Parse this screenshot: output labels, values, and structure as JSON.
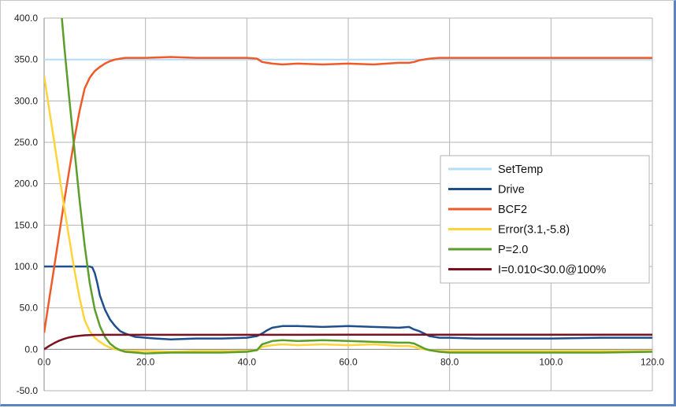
{
  "chart_data": {
    "type": "line",
    "title": "",
    "xlabel": "",
    "ylabel": "",
    "xlim": [
      0,
      120
    ],
    "ylim": [
      -50,
      400
    ],
    "x_ticks": [
      "0.0",
      "20.0",
      "40.0",
      "60.0",
      "80.0",
      "100.0",
      "120.0"
    ],
    "y_ticks": [
      "-50.0",
      "0.0",
      "50.0",
      "100.0",
      "150.0",
      "200.0",
      "250.0",
      "300.0",
      "350.0",
      "400.0"
    ],
    "grid": true,
    "legend_position": "right",
    "series": [
      {
        "name": "SetTemp",
        "color": "#b4dcf7",
        "x": [
          0,
          120
        ],
        "y": [
          350,
          350
        ]
      },
      {
        "name": "Drive",
        "color": "#1f4e8c",
        "x": [
          0,
          9,
          9.5,
          10,
          10.5,
          11,
          12,
          13,
          14,
          15,
          16,
          17,
          18,
          20,
          22,
          25,
          30,
          35,
          40,
          41,
          42,
          43,
          44,
          45,
          47,
          50,
          55,
          60,
          65,
          70,
          72,
          73,
          74,
          75,
          76,
          78,
          80,
          85,
          90,
          100,
          110,
          120
        ],
        "y": [
          100,
          100,
          99,
          92,
          80,
          65,
          48,
          36,
          28,
          22,
          19,
          17,
          15,
          14,
          13,
          12,
          13,
          13,
          14,
          15,
          16,
          19,
          23,
          26,
          28,
          28,
          27,
          28,
          27,
          26,
          27,
          24,
          22,
          19,
          16,
          14,
          14,
          13,
          13,
          13,
          14,
          14
        ]
      },
      {
        "name": "BCF2",
        "color": "#f05a28",
        "x": [
          0,
          1,
          2,
          3,
          4,
          5,
          6,
          7,
          8,
          9,
          10,
          11,
          12,
          13,
          14,
          15,
          16,
          18,
          20,
          25,
          30,
          35,
          40,
          42,
          43,
          44,
          45,
          47,
          50,
          55,
          60,
          65,
          70,
          72,
          73,
          74,
          75,
          76,
          78,
          80,
          90,
          100,
          110,
          120
        ],
        "y": [
          20,
          60,
          100,
          140,
          180,
          218,
          255,
          288,
          315,
          328,
          336,
          341,
          345,
          348,
          350,
          351,
          352,
          352,
          352,
          353,
          352,
          352,
          352,
          351,
          347,
          346,
          345,
          344,
          345,
          344,
          345,
          344,
          346,
          346,
          347,
          349,
          350,
          351,
          352,
          352,
          352,
          352,
          352,
          352
        ]
      },
      {
        "name": "Error(3.1,-5.8)",
        "color": "#ffd43b",
        "x": [
          0,
          1,
          2,
          3,
          4,
          5,
          6,
          7,
          8,
          9,
          10,
          11,
          12,
          13,
          14,
          15,
          16,
          18,
          20,
          25,
          30,
          35,
          40,
          42,
          43,
          44,
          45,
          47,
          50,
          55,
          60,
          65,
          70,
          72,
          73,
          74,
          75,
          76,
          78,
          80,
          90,
          100,
          110,
          120
        ],
        "y": [
          330,
          290,
          250,
          210,
          170,
          132,
          95,
          62,
          35,
          22,
          14,
          9,
          5,
          2,
          0,
          -1,
          -2,
          -2,
          -2,
          -3,
          -2,
          -2,
          -2,
          -1,
          3,
          4,
          5,
          6,
          5,
          6,
          5,
          6,
          4,
          4,
          3,
          1,
          0,
          -1,
          -2,
          -2,
          -2,
          -2,
          -2,
          -2
        ]
      },
      {
        "name": "P=2.0",
        "color": "#5b9e2a",
        "x": [
          3.5,
          4,
          5,
          6,
          7,
          8,
          9,
          10,
          11,
          12,
          13,
          14,
          15,
          16,
          18,
          20,
          25,
          30,
          35,
          40,
          42,
          43,
          44,
          45,
          47,
          50,
          55,
          60,
          65,
          70,
          72,
          73,
          74,
          75,
          76,
          78,
          80,
          90,
          100,
          110,
          120
        ],
        "y": [
          400,
          365,
          300,
          240,
          180,
          125,
          80,
          48,
          28,
          15,
          7,
          2,
          -1,
          -3,
          -4,
          -5,
          -4,
          -4,
          -4,
          -3,
          -1,
          6,
          8,
          10,
          11,
          10,
          11,
          10,
          9,
          8,
          8,
          7,
          4,
          1,
          -1,
          -3,
          -4,
          -4,
          -4,
          -4,
          -3
        ]
      },
      {
        "name": "I=0.010<30.0@100%",
        "color": "#7b1020",
        "x": [
          0,
          1,
          2,
          3,
          4,
          5,
          6,
          7,
          8,
          9,
          10,
          12,
          14,
          16,
          20,
          30,
          40,
          50,
          60,
          70,
          80,
          90,
          100,
          110,
          120
        ],
        "y": [
          0,
          4,
          7.5,
          10.5,
          12.8,
          14.5,
          15.6,
          16.4,
          16.9,
          17.2,
          17.4,
          17.5,
          17.5,
          17.5,
          17.5,
          17.5,
          17.5,
          17.5,
          17.6,
          17.6,
          17.6,
          17.6,
          17.6,
          17.6,
          17.6
        ]
      }
    ]
  }
}
